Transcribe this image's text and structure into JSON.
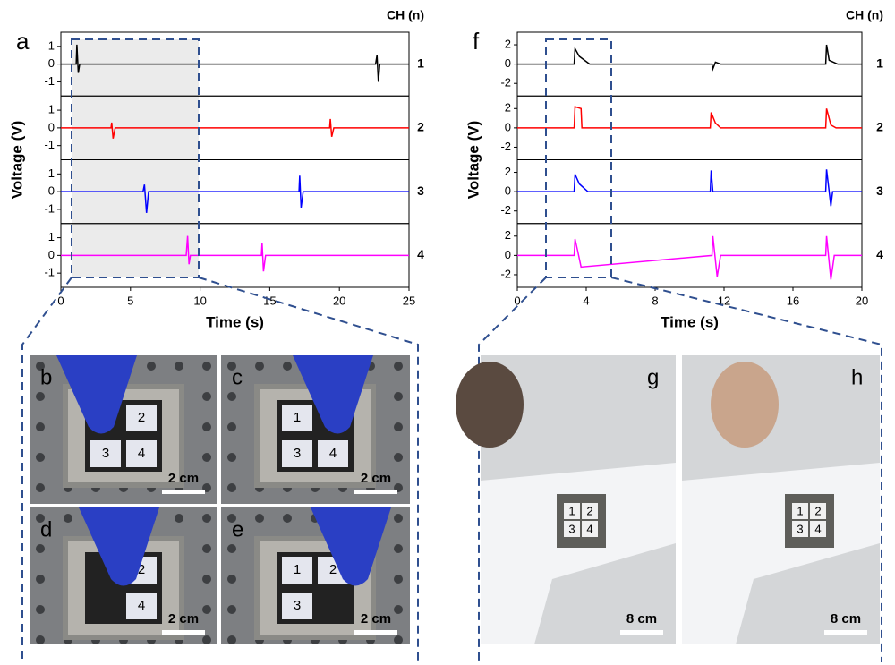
{
  "chart_data": [
    {
      "type": "line",
      "panel": "a",
      "legend_title": "CH (n)",
      "x_label": "Time (s)",
      "y_label": "Voltage (V)",
      "xlim": [
        0,
        25
      ],
      "xticks": [
        0,
        5,
        10,
        15,
        20,
        25
      ],
      "ylim": [
        -1.8,
        1.8
      ],
      "yticks": [
        -1,
        0,
        1
      ],
      "series": [
        {
          "name": "1",
          "color": "#000000",
          "x": [
            0,
            1.1,
            1.15,
            1.25,
            1.35,
            22.6,
            22.7,
            22.8,
            22.9,
            25
          ],
          "values": [
            0,
            0,
            1.1,
            -0.5,
            0,
            0,
            0.5,
            -1.0,
            0,
            0
          ]
        },
        {
          "name": "2",
          "color": "#ff0000",
          "x": [
            0,
            3.6,
            3.65,
            3.75,
            3.9,
            19.3,
            19.35,
            19.45,
            19.6,
            25
          ],
          "values": [
            0,
            0,
            0.3,
            -0.6,
            0,
            0,
            0.5,
            -0.5,
            0,
            0
          ]
        },
        {
          "name": "3",
          "color": "#0000ff",
          "x": [
            0,
            5.9,
            6.0,
            6.15,
            6.3,
            17.1,
            17.15,
            17.25,
            17.4,
            25
          ],
          "values": [
            0,
            0,
            0.4,
            -1.2,
            0,
            0,
            0.9,
            -0.9,
            0,
            0
          ]
        },
        {
          "name": "4",
          "color": "#ff00ff",
          "x": [
            0,
            9.0,
            9.1,
            9.2,
            9.3,
            14.4,
            14.45,
            14.55,
            14.7,
            25
          ],
          "values": [
            0,
            0,
            1.1,
            -0.5,
            0,
            0,
            0.7,
            -0.9,
            0,
            0
          ]
        }
      ]
    },
    {
      "type": "line",
      "panel": "f",
      "legend_title": "CH (n)",
      "x_label": "Time (s)",
      "y_label": "Voltage (V)",
      "xlim": [
        0,
        20
      ],
      "xticks": [
        0,
        4,
        8,
        12,
        16,
        20
      ],
      "ylim": [
        -3.3,
        3.3
      ],
      "yticks": [
        -2,
        0,
        2
      ],
      "series": [
        {
          "name": "1",
          "color": "#000000",
          "x": [
            0,
            3.3,
            3.35,
            3.6,
            4.2,
            11.3,
            11.35,
            11.5,
            11.8,
            17.9,
            17.95,
            18.1,
            18.6,
            20
          ],
          "values": [
            0,
            0,
            1.6,
            0.8,
            0,
            0,
            -0.5,
            0.2,
            0,
            0,
            2.0,
            0.4,
            0,
            0
          ]
        },
        {
          "name": "2",
          "color": "#ff0000",
          "x": [
            0,
            3.3,
            3.35,
            3.7,
            3.75,
            11.2,
            11.25,
            11.5,
            11.8,
            17.9,
            17.95,
            18.2,
            18.5,
            20
          ],
          "values": [
            0,
            0,
            2.2,
            2.0,
            0,
            0,
            1.6,
            0.5,
            0,
            0,
            2.0,
            0.3,
            0,
            0
          ]
        },
        {
          "name": "3",
          "color": "#0000ff",
          "x": [
            0,
            3.3,
            3.35,
            3.6,
            4.1,
            11.2,
            11.25,
            11.35,
            11.6,
            17.9,
            17.95,
            18.2,
            18.3,
            20
          ],
          "values": [
            0,
            0,
            1.8,
            0.8,
            0,
            0,
            2.2,
            0,
            0,
            0,
            2.3,
            -1.5,
            0,
            0
          ]
        },
        {
          "name": "4",
          "color": "#ff00ff",
          "x": [
            0,
            3.3,
            3.35,
            3.5,
            3.7,
            11.3,
            11.35,
            11.6,
            11.8,
            17.9,
            17.95,
            18.2,
            18.4,
            20
          ],
          "values": [
            0,
            0,
            1.7,
            0.5,
            -1.2,
            0,
            2.0,
            -2.2,
            0,
            0,
            2.0,
            -2.5,
            0,
            0
          ]
        }
      ]
    }
  ],
  "photos": [
    {
      "label": "b",
      "scale_bar": "2 cm",
      "cells": [
        null,
        "2",
        "3",
        "4"
      ]
    },
    {
      "label": "c",
      "scale_bar": "2 cm",
      "cells": [
        "1",
        null,
        "3",
        "4"
      ]
    },
    {
      "label": "d",
      "scale_bar": "2 cm",
      "cells": [
        null,
        "2",
        null,
        "4"
      ]
    },
    {
      "label": "e",
      "scale_bar": "2 cm",
      "cells": [
        "1",
        "2",
        "3",
        null
      ]
    },
    {
      "label": "g",
      "scale_bar": "8 cm",
      "cells": [
        "1",
        "2",
        "3",
        "4"
      ]
    },
    {
      "label": "h",
      "scale_bar": "8 cm",
      "cells": [
        "1",
        "2",
        "3",
        "4"
      ]
    }
  ]
}
